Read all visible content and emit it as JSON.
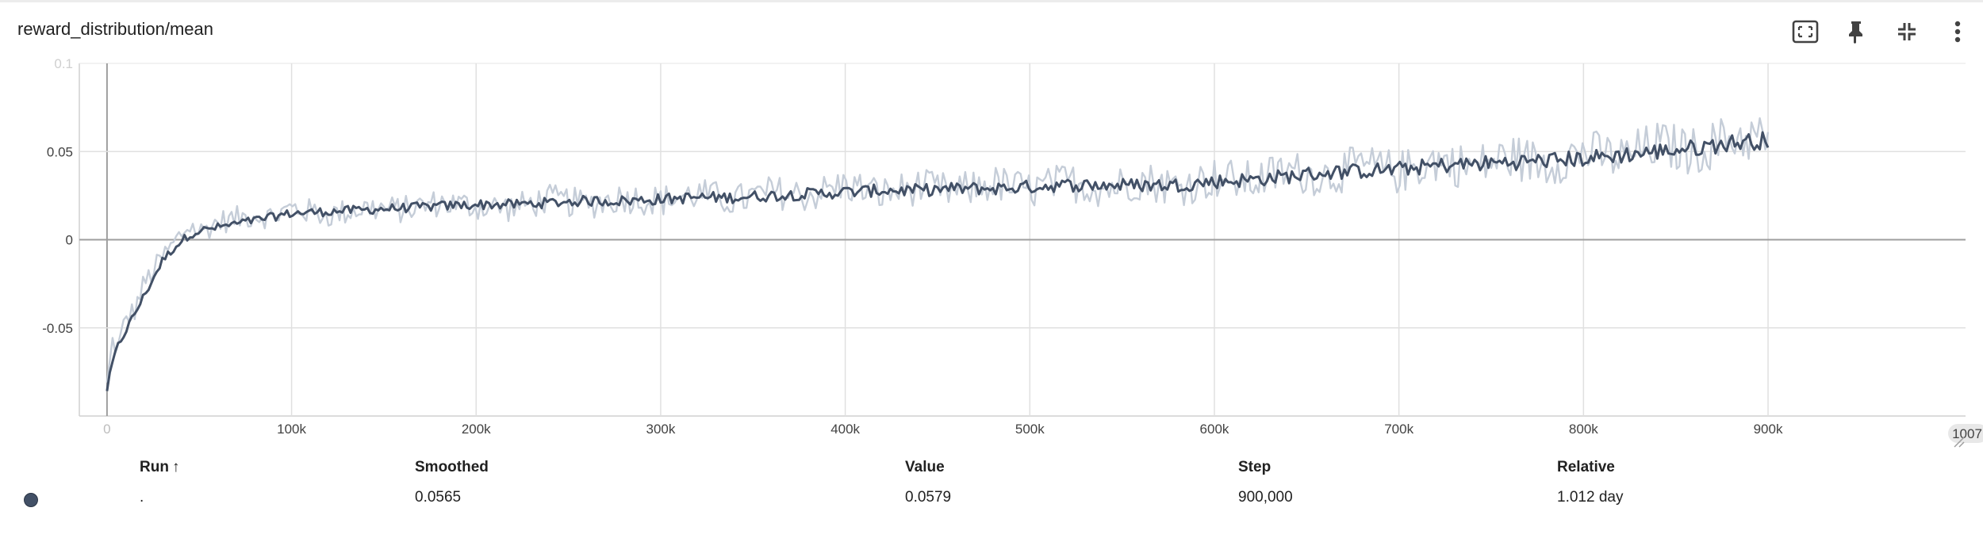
{
  "card": {
    "title": "reward_distribution/mean",
    "tools": [
      {
        "name": "fit-domain-icon"
      },
      {
        "name": "pin-icon"
      },
      {
        "name": "collapse-icon"
      },
      {
        "name": "more-vert-icon"
      }
    ]
  },
  "chart_data": {
    "type": "line",
    "title": "",
    "xlabel": "",
    "ylabel": "",
    "x_ticks": [
      "0",
      "100k",
      "200k",
      "300k",
      "400k",
      "500k",
      "600k",
      "700k",
      "800k",
      "900k"
    ],
    "x_tick_values": [
      0,
      100000,
      200000,
      300000,
      400000,
      500000,
      600000,
      700000,
      800000,
      900000
    ],
    "x_end_label": "1007",
    "x_end_value": 1007000,
    "y_ticks": [
      "0.1",
      "0.05",
      "0",
      "-0.05"
    ],
    "y_tick_values": [
      0.1,
      0.05,
      0,
      -0.05
    ],
    "xlim": [
      -15000,
      1007000
    ],
    "ylim": [
      -0.1,
      0.1
    ],
    "grid": true,
    "colors": {
      "smoothed": "#425066",
      "raw": "#c5cdd8",
      "grid": "#e0e0e0",
      "zero": "#9e9e9e"
    },
    "series": [
      {
        "name": ".",
        "x": [
          0,
          3000,
          6000,
          10000,
          15000,
          20000,
          25000,
          30000,
          35000,
          40000,
          45000,
          50000,
          60000,
          70000,
          80000,
          90000,
          100000,
          120000,
          140000,
          160000,
          180000,
          200000,
          220000,
          240000,
          260000,
          280000,
          300000,
          320000,
          340000,
          360000,
          380000,
          400000,
          420000,
          440000,
          460000,
          480000,
          500000,
          520000,
          540000,
          560000,
          580000,
          600000,
          620000,
          640000,
          660000,
          680000,
          700000,
          720000,
          740000,
          760000,
          780000,
          800000,
          820000,
          840000,
          860000,
          880000,
          900000
        ],
        "smoothed": [
          -0.085,
          -0.07,
          -0.06,
          -0.052,
          -0.042,
          -0.032,
          -0.022,
          -0.012,
          -0.006,
          -0.001,
          0.003,
          0.005,
          0.007,
          0.009,
          0.011,
          0.013,
          0.015,
          0.016,
          0.017,
          0.018,
          0.019,
          0.02,
          0.02,
          0.021,
          0.022,
          0.022,
          0.023,
          0.024,
          0.024,
          0.025,
          0.026,
          0.027,
          0.028,
          0.028,
          0.029,
          0.029,
          0.03,
          0.031,
          0.031,
          0.031,
          0.031,
          0.033,
          0.034,
          0.036,
          0.038,
          0.039,
          0.04,
          0.042,
          0.043,
          0.044,
          0.045,
          0.046,
          0.048,
          0.05,
          0.052,
          0.055,
          0.0565
        ],
        "values": [
          -0.083,
          -0.058,
          -0.062,
          -0.045,
          -0.04,
          -0.025,
          -0.018,
          -0.01,
          -0.004,
          0.003,
          0.008,
          0.004,
          0.01,
          0.012,
          0.014,
          0.013,
          0.018,
          0.014,
          0.018,
          0.017,
          0.021,
          0.019,
          0.018,
          0.023,
          0.02,
          0.024,
          0.022,
          0.026,
          0.022,
          0.027,
          0.025,
          0.031,
          0.026,
          0.03,
          0.027,
          0.032,
          0.028,
          0.033,
          0.029,
          0.034,
          0.03,
          0.035,
          0.033,
          0.039,
          0.036,
          0.042,
          0.038,
          0.045,
          0.041,
          0.047,
          0.043,
          0.05,
          0.046,
          0.054,
          0.05,
          0.058,
          0.0579
        ]
      }
    ]
  },
  "table": {
    "headers": {
      "run": "Run",
      "sort": "↑",
      "smoothed": "Smoothed",
      "value": "Value",
      "step": "Step",
      "relative": "Relative"
    },
    "rows": [
      {
        "run": ".",
        "smoothed": "0.0565",
        "value": "0.0579",
        "step": "900,000",
        "relative": "1.012 day",
        "color": "#425066"
      }
    ]
  }
}
